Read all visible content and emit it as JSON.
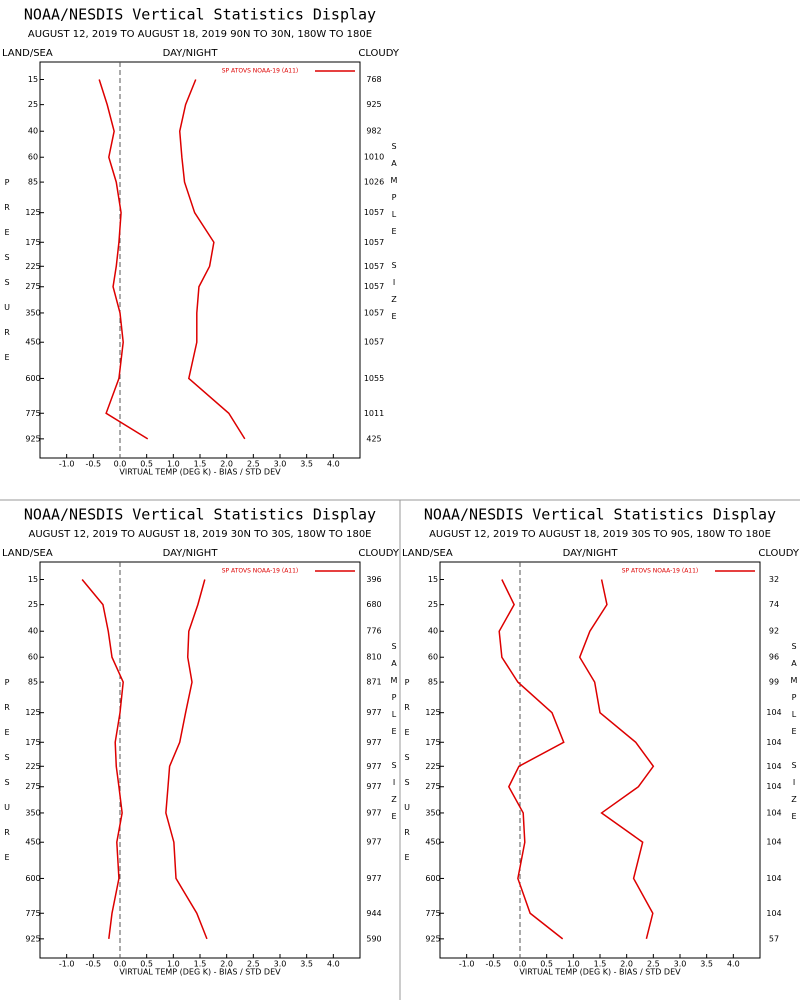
{
  "chart_data": [
    {
      "type": "line",
      "title": "NOAA/NESDIS Vertical Statistics Display",
      "subtitle": "AUGUST 12, 2019 TO AUGUST 18, 2019  90N TO 30N, 180W TO 180E",
      "left_label": "LAND/SEA",
      "center_label": "DAY/NIGHT",
      "right_label": "CLOUDY",
      "y_label": "PRESSURE",
      "y2_label": "SAMPLE SIZE",
      "x_label": "VIRTUAL TEMP (DEG K) - BIAS / STD DEV",
      "y": [
        15,
        25,
        40,
        60,
        85,
        125,
        175,
        225,
        275,
        350,
        450,
        600,
        775,
        925
      ],
      "series": [
        {
          "name": "SP ATOVS NOAA-19 (A11)",
          "color": "#dd0000",
          "bias": [
            -0.39,
            -0.24,
            -0.11,
            -0.21,
            -0.07,
            0.02,
            -0.02,
            -0.07,
            -0.13,
            0,
            0.06,
            -0.02,
            -0.26,
            0.52
          ],
          "std_dev": [
            1.42,
            1.23,
            1.12,
            1.16,
            1.21,
            1.4,
            1.76,
            1.68,
            1.48,
            1.44,
            1.44,
            1.29,
            2.04,
            2.34
          ]
        }
      ],
      "sample_size": [
        768,
        925,
        982,
        1010,
        1026,
        1057,
        1057,
        1057,
        1057,
        1057,
        1057,
        1055,
        1011,
        425
      ],
      "xlim": [
        -1.5,
        4.5
      ],
      "xticks": [
        {
          "value": -1,
          "label": "-1.0"
        },
        -0.5,
        {
          "value": 0,
          "label": "0.0"
        },
        0.5,
        {
          "value": 1,
          "label": "1.0"
        },
        1.5,
        {
          "value": 2,
          "label": "2.0"
        },
        2.5,
        {
          "value": 3,
          "label": "3.0"
        },
        3.5,
        {
          "value": 4,
          "label": "4.0"
        }
      ],
      "ylim": [
        10,
        1050
      ],
      "yticks": [
        15,
        25,
        40,
        60,
        85,
        125,
        175,
        225,
        275,
        350,
        450,
        600,
        775,
        925
      ]
    },
    {
      "type": "line",
      "title": "NOAA/NESDIS Vertical Statistics Display",
      "subtitle": "AUGUST 12, 2019 TO AUGUST 18, 2019  30N TO 30S, 180W TO 180E",
      "left_label": "LAND/SEA",
      "center_label": "DAY/NIGHT",
      "right_label": "CLOUDY",
      "y_label": "PRESSURE",
      "y2_label": "SAMPLE SIZE",
      "x_label": "VIRTUAL TEMP (DEG K) - BIAS / STD DEV",
      "y": [
        15,
        25,
        40,
        60,
        85,
        125,
        175,
        225,
        275,
        350,
        450,
        600,
        775,
        925
      ],
      "series": [
        {
          "name": "SP ATOVS NOAA-19 (A11)",
          "color": "#dd0000",
          "bias": [
            -0.71,
            -0.32,
            -0.22,
            -0.15,
            0.06,
            0,
            -0.09,
            -0.07,
            -0.02,
            0.04,
            -0.06,
            -0.02,
            -0.15,
            -0.21
          ],
          "std_dev": [
            1.59,
            1.46,
            1.29,
            1.27,
            1.35,
            1.23,
            1.12,
            0.93,
            0.9,
            0.86,
            1.01,
            1.05,
            1.44,
            1.63
          ]
        }
      ],
      "sample_size": [
        396,
        680,
        776,
        810,
        871,
        977,
        977,
        977,
        977,
        977,
        977,
        977,
        944,
        590
      ],
      "xlim": [
        -1.5,
        4.5
      ],
      "xticks": [
        {
          "value": -1,
          "label": "-1.0"
        },
        -0.5,
        {
          "value": 0,
          "label": "0.0"
        },
        0.5,
        {
          "value": 1,
          "label": "1.0"
        },
        1.5,
        {
          "value": 2,
          "label": "2.0"
        },
        2.5,
        {
          "value": 3,
          "label": "3.0"
        },
        3.5,
        {
          "value": 4,
          "label": "4.0"
        }
      ],
      "ylim": [
        10,
        1050
      ],
      "yticks": [
        15,
        25,
        40,
        60,
        85,
        125,
        175,
        225,
        275,
        350,
        450,
        600,
        775,
        925
      ]
    },
    {
      "type": "line",
      "title": "NOAA/NESDIS Vertical Statistics Display",
      "subtitle": "AUGUST 12, 2019 TO AUGUST 18, 2019  30S TO 90S, 180W TO 180E",
      "left_label": "LAND/SEA",
      "center_label": "DAY/NIGHT",
      "right_label": "CLOUDY",
      "y_label": "PRESSURE",
      "y2_label": "SAMPLE SIZE",
      "x_label": "VIRTUAL TEMP (DEG K) - BIAS / STD DEV",
      "y": [
        15,
        25,
        40,
        60,
        85,
        125,
        175,
        225,
        275,
        350,
        450,
        600,
        775,
        925
      ],
      "series": [
        {
          "name": "SP ATOVS NOAA-19 (A11)",
          "color": "#dd0000",
          "bias": [
            -0.34,
            -0.11,
            -0.39,
            -0.34,
            -0.04,
            0.6,
            0.82,
            -0.02,
            -0.21,
            0.06,
            0.09,
            -0.04,
            0.19,
            0.8
          ],
          "std_dev": [
            1.53,
            1.63,
            1.31,
            1.12,
            1.4,
            1.5,
            2.17,
            2.5,
            2.22,
            1.53,
            2.3,
            2.13,
            2.49,
            2.37
          ]
        }
      ],
      "sample_size": [
        32,
        74,
        92,
        96,
        99,
        104,
        104,
        104,
        104,
        104,
        104,
        104,
        104,
        57
      ],
      "xlim": [
        -1.5,
        4.5
      ],
      "xticks": [
        {
          "value": -1,
          "label": "-1.0"
        },
        -0.5,
        {
          "value": 0,
          "label": "0.0"
        },
        0.5,
        {
          "value": 1,
          "label": "1.0"
        },
        1.5,
        {
          "value": 2,
          "label": "2.0"
        },
        2.5,
        {
          "value": 3,
          "label": "3.0"
        },
        3.5,
        {
          "value": 4,
          "label": "4.0"
        }
      ],
      "ylim": [
        10,
        1050
      ],
      "yticks": [
        15,
        25,
        40,
        60,
        85,
        125,
        175,
        225,
        275,
        350,
        450,
        600,
        775,
        925
      ]
    }
  ]
}
